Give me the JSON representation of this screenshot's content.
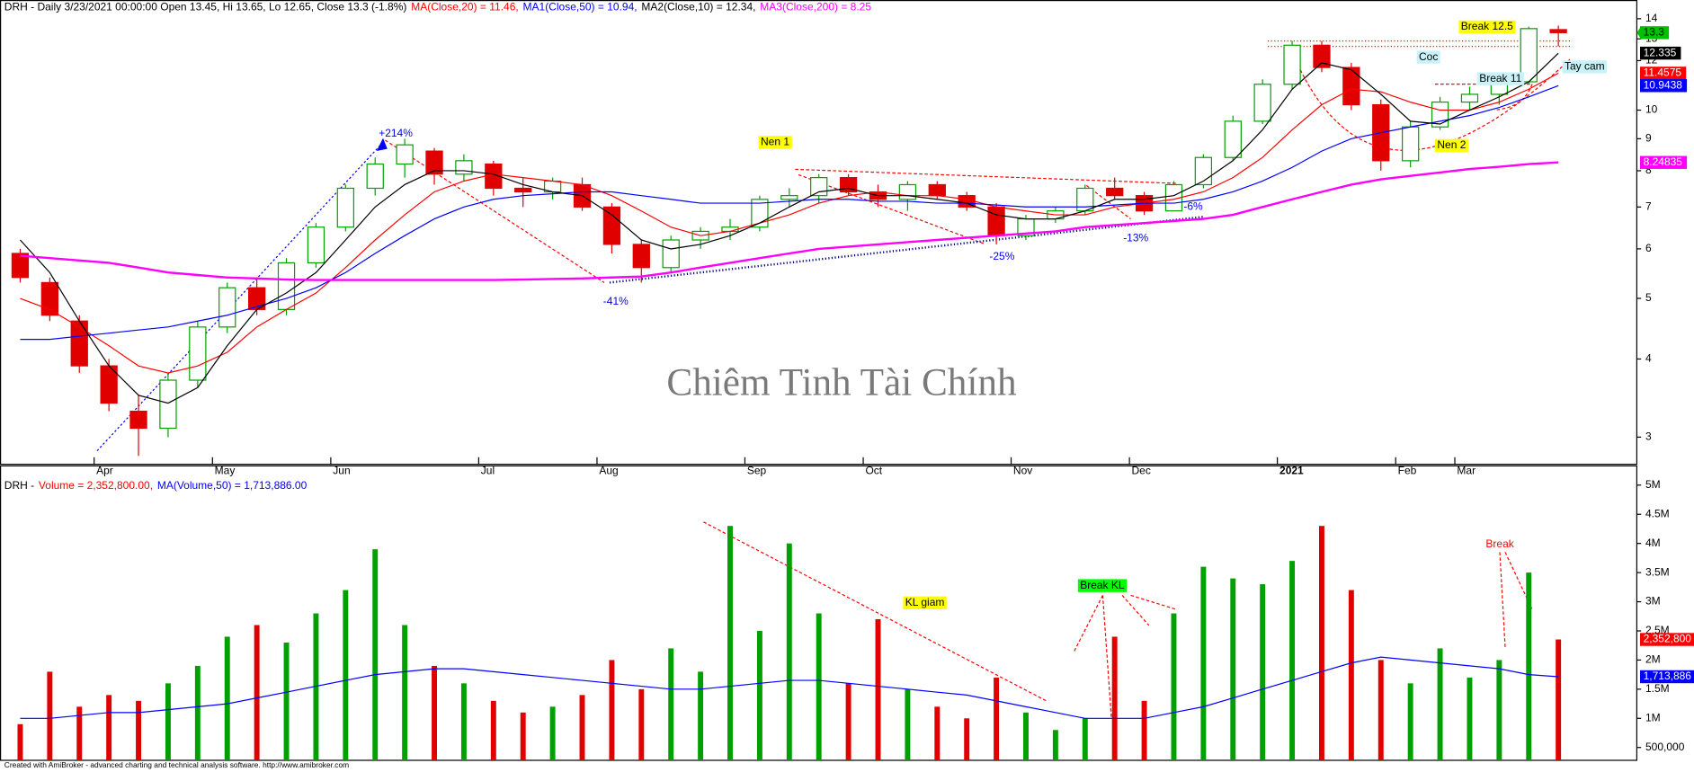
{
  "chart_data": [
    {
      "type": "candlestick",
      "header": "DRH - Daily 3/23/2021 00:00:00 Open 13.45, Hi 13.65, Lo 12.65, Close 13.3 (-1.8%)",
      "categories": [
        null,
        null,
        null,
        "Apr",
        null,
        null,
        null,
        "May",
        null,
        null,
        null,
        "Jun",
        null,
        null,
        null,
        null,
        "Jul",
        null,
        null,
        null,
        "Aug",
        null,
        null,
        null,
        null,
        "Sep",
        null,
        null,
        null,
        "Oct",
        null,
        null,
        null,
        null,
        "Nov",
        null,
        null,
        null,
        "Dec",
        null,
        null,
        null,
        null,
        "2021",
        null,
        null,
        null,
        "Feb",
        null,
        "Mar",
        null,
        null,
        null
      ],
      "open": [
        5.9,
        5.3,
        4.6,
        3.9,
        3.3,
        3.1,
        3.7,
        4.5,
        5.2,
        4.8,
        5.7,
        6.5,
        7.5,
        8.2,
        8.6,
        7.9,
        8.2,
        7.5,
        7.4,
        7.6,
        7.0,
        6.1,
        5.6,
        6.2,
        6.4,
        6.5,
        7.2,
        7.3,
        7.8,
        7.4,
        7.2,
        7.6,
        7.3,
        7.0,
        6.3,
        6.7,
        6.9,
        7.5,
        7.3,
        6.9,
        7.6,
        8.4,
        9.6,
        11.0,
        12.7,
        11.7,
        10.2,
        8.3,
        9.4,
        10.3,
        10.6,
        11.1,
        13.45
      ],
      "high": [
        6.0,
        5.4,
        4.7,
        4.0,
        3.5,
        3.8,
        4.6,
        5.3,
        5.4,
        5.8,
        6.6,
        7.6,
        8.4,
        9.0,
        8.7,
        8.5,
        8.3,
        7.8,
        7.8,
        7.8,
        7.1,
        6.2,
        6.3,
        6.5,
        6.7,
        7.3,
        7.5,
        7.9,
        7.9,
        7.6,
        7.7,
        7.7,
        7.4,
        7.1,
        6.8,
        7.0,
        7.6,
        7.8,
        7.4,
        7.7,
        8.5,
        9.8,
        11.2,
        12.9,
        12.9,
        11.9,
        10.4,
        9.6,
        10.5,
        10.9,
        11.3,
        13.6,
        13.65
      ],
      "low": [
        5.3,
        4.6,
        3.8,
        3.3,
        2.8,
        3.0,
        3.6,
        4.4,
        4.7,
        4.7,
        5.6,
        6.4,
        7.3,
        7.8,
        7.6,
        7.7,
        7.3,
        7.0,
        7.2,
        6.9,
        5.9,
        5.3,
        5.5,
        6.0,
        6.2,
        6.4,
        7.0,
        7.1,
        7.3,
        7.0,
        6.9,
        7.2,
        6.9,
        6.1,
        6.2,
        6.6,
        6.8,
        7.2,
        6.8,
        6.9,
        7.5,
        8.3,
        9.5,
        10.8,
        11.5,
        10.0,
        8.0,
        8.1,
        9.3,
        10.0,
        10.2,
        11.0,
        12.65
      ],
      "close": [
        5.4,
        4.7,
        3.9,
        3.4,
        3.1,
        3.7,
        4.5,
        5.2,
        4.8,
        5.7,
        6.5,
        7.5,
        8.2,
        8.8,
        7.9,
        8.3,
        7.5,
        7.4,
        7.7,
        7.0,
        6.1,
        5.6,
        6.2,
        6.4,
        6.5,
        7.2,
        7.3,
        7.8,
        7.4,
        7.2,
        7.6,
        7.3,
        7.0,
        6.3,
        6.7,
        6.9,
        7.5,
        7.3,
        6.9,
        7.6,
        8.4,
        9.6,
        11.0,
        12.7,
        11.7,
        10.2,
        8.3,
        9.4,
        10.3,
        10.6,
        11.1,
        13.5,
        13.3
      ],
      "up_color": "#00a000",
      "down_color": "#e00000",
      "close_badge_color": "#00c000",
      "series": [
        {
          "label": "MA(Close,20) = 11.46,",
          "color": "#ff0000",
          "values": [
            5.0,
            4.8,
            4.5,
            4.2,
            3.9,
            3.8,
            3.9,
            4.1,
            4.5,
            4.8,
            5.1,
            5.6,
            6.2,
            6.8,
            7.4,
            7.7,
            7.9,
            7.8,
            7.7,
            7.6,
            7.3,
            6.9,
            6.5,
            6.3,
            6.4,
            6.6,
            6.8,
            7.1,
            7.3,
            7.4,
            7.3,
            7.3,
            7.2,
            7.0,
            6.9,
            6.8,
            6.8,
            7.0,
            7.1,
            7.2,
            7.4,
            7.8,
            8.4,
            9.3,
            10.2,
            10.8,
            10.7,
            10.3,
            10.0,
            10.0,
            10.3,
            10.8,
            11.4575
          ]
        },
        {
          "label": "MA1(Close,50) = 10.94,",
          "color": "#0000ff",
          "values": [
            4.3,
            4.3,
            4.35,
            4.4,
            4.45,
            4.5,
            4.6,
            4.7,
            4.85,
            5.0,
            5.2,
            5.5,
            5.9,
            6.3,
            6.7,
            7.0,
            7.2,
            7.3,
            7.35,
            7.4,
            7.4,
            7.3,
            7.2,
            7.1,
            7.1,
            7.1,
            7.15,
            7.2,
            7.2,
            7.15,
            7.15,
            7.1,
            7.1,
            7.05,
            7.0,
            7.0,
            7.0,
            7.05,
            7.1,
            7.1,
            7.2,
            7.4,
            7.7,
            8.1,
            8.6,
            9.0,
            9.2,
            9.4,
            9.6,
            9.8,
            10.1,
            10.5,
            10.9438
          ]
        },
        {
          "label": "MA2(Close,10) = 12.34,",
          "color": "#000000",
          "values": [
            6.2,
            5.5,
            4.6,
            3.9,
            3.5,
            3.4,
            3.6,
            4.2,
            4.8,
            5.1,
            5.5,
            6.2,
            7.0,
            7.6,
            8.0,
            8.0,
            7.9,
            7.6,
            7.4,
            7.3,
            6.8,
            6.2,
            6.0,
            6.1,
            6.3,
            6.6,
            7.0,
            7.4,
            7.5,
            7.3,
            7.3,
            7.2,
            7.1,
            6.8,
            6.7,
            6.7,
            6.9,
            7.2,
            7.2,
            7.3,
            7.7,
            8.3,
            9.3,
            10.8,
            11.9,
            11.6,
            10.6,
            9.6,
            9.5,
            10.0,
            10.5,
            11.1,
            12.335
          ]
        },
        {
          "label": "MA3(Close,200) = 8.25",
          "color": "#ff00ff",
          "values": [
            5.85,
            5.8,
            5.75,
            5.7,
            5.6,
            5.5,
            5.45,
            5.4,
            5.38,
            5.36,
            5.35,
            5.35,
            5.35,
            5.35,
            5.35,
            5.35,
            5.35,
            5.36,
            5.37,
            5.38,
            5.4,
            5.42,
            5.5,
            5.6,
            5.7,
            5.8,
            5.9,
            6.0,
            6.05,
            6.1,
            6.15,
            6.2,
            6.25,
            6.3,
            6.35,
            6.4,
            6.5,
            6.55,
            6.6,
            6.65,
            6.7,
            6.8,
            7.0,
            7.2,
            7.4,
            7.6,
            7.75,
            7.85,
            7.95,
            8.05,
            8.12,
            8.2,
            8.24835
          ]
        }
      ],
      "log_scale": true,
      "ylim": [
        2.72,
        15
      ],
      "yticks": [
        3,
        4,
        5,
        6,
        7,
        8,
        9,
        10,
        12,
        13,
        14
      ],
      "annotations": [
        {
          "text": "+214%",
          "color": "#0000ff"
        },
        {
          "text": "-41%",
          "color": "#0000ff"
        },
        {
          "text": "-25%",
          "color": "#0000ff"
        },
        {
          "text": "-13%",
          "color": "#0000ff"
        },
        {
          "text": "-6%",
          "color": "#0000ff"
        },
        {
          "text": "Nen 1",
          "color": "#000000",
          "background": "#ffff00"
        },
        {
          "text": "Nen 2",
          "color": "#000000",
          "background": "#ffff00"
        },
        {
          "text": "Coc",
          "color": "#000000",
          "background": "#c8f2f8"
        },
        {
          "text": "Tay cam",
          "color": "#000000",
          "background": "#c8f2f8"
        },
        {
          "text": "Break 11",
          "color": "#000000",
          "background": "#c8f2f8"
        },
        {
          "text": "Break 12.5",
          "color": "#000000",
          "background": "#ffff00"
        }
      ]
    },
    {
      "type": "bar",
      "header": "DRH -",
      "series": [
        {
          "label": "Volume = 2,352,800.00,",
          "color": "#ff0000",
          "values": [
            900000,
            1800000,
            1200000,
            1400000,
            1300000,
            1600000,
            1900000,
            2400000,
            2600000,
            2300000,
            2800000,
            3200000,
            3900000,
            2600000,
            1900000,
            1600000,
            1300000,
            1100000,
            1200000,
            1400000,
            2000000,
            1500000,
            2200000,
            1800000,
            4300000,
            2500000,
            4000000,
            2800000,
            1600000,
            2700000,
            1500000,
            1200000,
            1000000,
            1700000,
            1100000,
            800000,
            1000000,
            2400000,
            1300000,
            2800000,
            3600000,
            3400000,
            3300000,
            3700000,
            4300000,
            3200000,
            2000000,
            1600000,
            2200000,
            1700000,
            2000000,
            3500000,
            2352800
          ],
          "value_labels": [
            null,
            null,
            null,
            null,
            null,
            null,
            null,
            null,
            null,
            null,
            null,
            null,
            null,
            null,
            null,
            null,
            null,
            null,
            null,
            null,
            null,
            null,
            null,
            null,
            null,
            null,
            null,
            null,
            null,
            null,
            null,
            null,
            null,
            null,
            null,
            null,
            null,
            null,
            null,
            null,
            null,
            null,
            null,
            null,
            null,
            null,
            null,
            null,
            null,
            null,
            null,
            null,
            "2,352,800"
          ]
        },
        {
          "label": "MA(Volume,50) = 1,713,886.00",
          "color": "#0000ff",
          "type": "line",
          "values": [
            1000000,
            1000000,
            1050000,
            1100000,
            1100000,
            1150000,
            1200000,
            1250000,
            1350000,
            1450000,
            1550000,
            1650000,
            1750000,
            1800000,
            1850000,
            1850000,
            1800000,
            1750000,
            1700000,
            1650000,
            1600000,
            1550000,
            1500000,
            1500000,
            1550000,
            1600000,
            1650000,
            1650000,
            1600000,
            1550000,
            1500000,
            1450000,
            1400000,
            1300000,
            1200000,
            1100000,
            1000000,
            1000000,
            1000000,
            1100000,
            1200000,
            1350000,
            1500000,
            1650000,
            1800000,
            1950000,
            2050000,
            2000000,
            1950000,
            1900000,
            1850000,
            1750000,
            1713886
          ],
          "value_labels": [
            null,
            null,
            null,
            null,
            null,
            null,
            null,
            null,
            null,
            null,
            null,
            null,
            null,
            null,
            null,
            null,
            null,
            null,
            null,
            null,
            null,
            null,
            null,
            null,
            null,
            null,
            null,
            null,
            null,
            null,
            null,
            null,
            null,
            null,
            null,
            null,
            null,
            null,
            null,
            null,
            null,
            null,
            null,
            null,
            null,
            null,
            null,
            null,
            null,
            null,
            null,
            null,
            "1,713,886"
          ]
        }
      ],
      "ylim": [
        280000,
        5330000
      ],
      "yticks": [
        {
          "value": 500000,
          "label": "500,000"
        },
        {
          "value": 1000000,
          "label": "1M"
        },
        {
          "value": 1500000,
          "label": "1.5M"
        },
        {
          "value": 2000000,
          "label": "2M"
        },
        {
          "value": 2500000,
          "label": "2.5M"
        },
        {
          "value": 3000000,
          "label": "3M"
        },
        {
          "value": 3500000,
          "label": "3.5M"
        },
        {
          "value": 4000000,
          "label": "4M"
        },
        {
          "value": 4500000,
          "label": "4.5M"
        },
        {
          "value": 5000000,
          "label": "5M"
        }
      ],
      "annotations": [
        {
          "text": "KL giam",
          "color": "#000000",
          "background": "#ffff00"
        },
        {
          "text": "Break KL",
          "color": "#000000",
          "background": "#00ff00"
        },
        {
          "text": "Break",
          "color": "#ff0000"
        }
      ]
    }
  ],
  "watermark": "Chiêm Tinh Tài Chính",
  "footer": "Created with AmiBroker - advanced charting and technical analysis software. http://www.amibroker.com"
}
